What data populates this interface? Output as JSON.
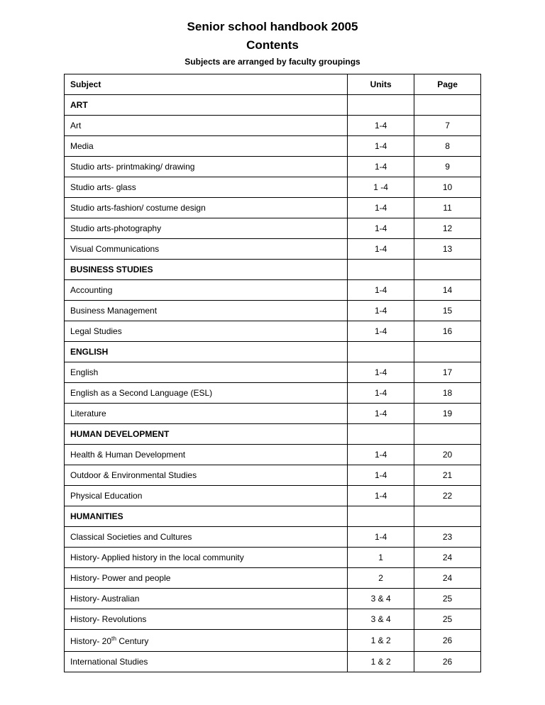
{
  "header": {
    "title": "Senior school handbook 2005",
    "subtitle": "Contents",
    "subhead": "Subjects are arranged by faculty groupings"
  },
  "table": {
    "columns": {
      "subject": "Subject",
      "units": "Units",
      "page": "Page"
    },
    "sections": [
      {
        "heading": "ART",
        "rows": [
          {
            "subject": "Art",
            "units": "1-4",
            "page": "7"
          },
          {
            "subject": "Media",
            "units": "1-4",
            "page": "8"
          },
          {
            "subject": "Studio arts- printmaking/ drawing",
            "units": "1-4",
            "page": "9"
          },
          {
            "subject": "Studio arts- glass",
            "units": "1 -4",
            "page": "10"
          },
          {
            "subject": "Studio arts-fashion/ costume design",
            "units": "1-4",
            "page": "11"
          },
          {
            "subject": "Studio arts-photography",
            "units": "1-4",
            "page": "12"
          },
          {
            "subject": "Visual Communications",
            "units": "1-4",
            "page": "13"
          }
        ]
      },
      {
        "heading": "BUSINESS STUDIES",
        "rows": [
          {
            "subject": "Accounting",
            "units": "1-4",
            "page": "14"
          },
          {
            "subject": "Business Management",
            "units": "1-4",
            "page": "15"
          },
          {
            "subject": "Legal Studies",
            "units": "1-4",
            "page": "16"
          }
        ]
      },
      {
        "heading": "ENGLISH",
        "rows": [
          {
            "subject": "English",
            "units": "1-4",
            "page": "17"
          },
          {
            "subject": "English as a Second Language (ESL)",
            "units": "1-4",
            "page": "18"
          },
          {
            "subject": "Literature",
            "units": "1-4",
            "page": "19"
          }
        ]
      },
      {
        "heading": "HUMAN DEVELOPMENT",
        "rows": [
          {
            "subject": "Health & Human Development",
            "units": "1-4",
            "page": "20"
          },
          {
            "subject": "Outdoor & Environmental Studies",
            "units": "1-4",
            "page": "21"
          },
          {
            "subject": "Physical Education",
            "units": "1-4",
            "page": "22"
          }
        ]
      },
      {
        "heading": "HUMANITIES",
        "rows": [
          {
            "subject": "Classical Societies and Cultures",
            "units": "1-4",
            "page": "23"
          },
          {
            "subject": "History- Applied history in the local community",
            "units": "1",
            "page": "24"
          },
          {
            "subject": "History- Power and people",
            "units": "2",
            "page": "24"
          },
          {
            "subject": "History- Australian",
            "units": "3 & 4",
            "page": "25"
          },
          {
            "subject": "History- Revolutions",
            "units": "3 & 4",
            "page": "25"
          },
          {
            "subject_html": "History- 20<sup>th</sup> Century",
            "subject": "History- 20th Century",
            "units": "1 & 2",
            "page": "26"
          },
          {
            "subject": "International Studies",
            "units": "1 & 2",
            "page": "26"
          }
        ]
      }
    ]
  }
}
